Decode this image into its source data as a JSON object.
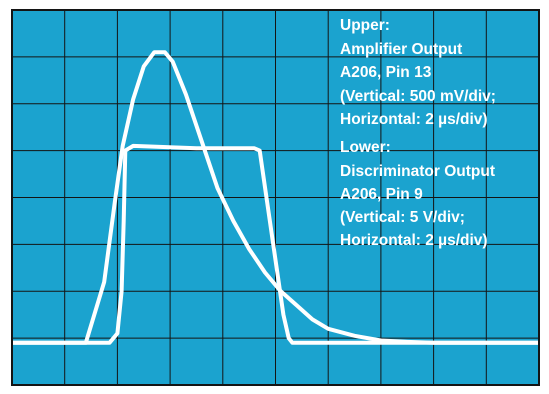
{
  "chart_data": {
    "type": "line",
    "grid": "on",
    "grid_divisions": {
      "x": 10,
      "y": 8
    },
    "x_unit": "div",
    "y_unit": "div",
    "xlim": [
      0,
      10
    ],
    "ylim": [
      0,
      8
    ],
    "colors": {
      "screen": "#1ba3cf",
      "grid": "#141414",
      "trace": "#ffffff",
      "frame": "#141414"
    },
    "annotations": {
      "upper": {
        "lines": [
          "Upper:",
          "Amplifier Output",
          "A206, Pin 13",
          "(Vertical: 500 mV/div;",
          "Horizontal: 2 µs/div)"
        ]
      },
      "lower": {
        "lines": [
          "Lower:",
          "Discriminator Output",
          "A206, Pin 9",
          "(Vertical: 5 V/div;",
          "Horizontal: 2 µs/div)"
        ]
      }
    },
    "series": [
      {
        "x": [
          0,
          1.4,
          1.75,
          1.95,
          2.1,
          2.3,
          2.5,
          2.7,
          2.9,
          3.05,
          3.3,
          3.6,
          3.9,
          4.2,
          4.5,
          4.8,
          5.1,
          5.4,
          5.7,
          6.0,
          6.5,
          7.0,
          7.5,
          8.0,
          10
        ],
        "y": [
          0.9,
          0.9,
          2.2,
          3.9,
          5.1,
          6.1,
          6.8,
          7.1,
          7.1,
          6.9,
          6.2,
          5.2,
          4.2,
          3.5,
          2.9,
          2.4,
          2.0,
          1.7,
          1.4,
          1.2,
          1.05,
          0.95,
          0.92,
          0.9,
          0.9
        ]
      },
      {
        "x": [
          0,
          1.85,
          2.0,
          2.08,
          2.12,
          2.15,
          2.3,
          3.5,
          4.6,
          4.7,
          5.15,
          5.25,
          5.32,
          10
        ],
        "y": [
          0.9,
          0.9,
          1.1,
          2.0,
          3.5,
          5.0,
          5.1,
          5.05,
          5.05,
          5.0,
          1.5,
          1.0,
          0.9,
          0.9
        ]
      }
    ]
  }
}
